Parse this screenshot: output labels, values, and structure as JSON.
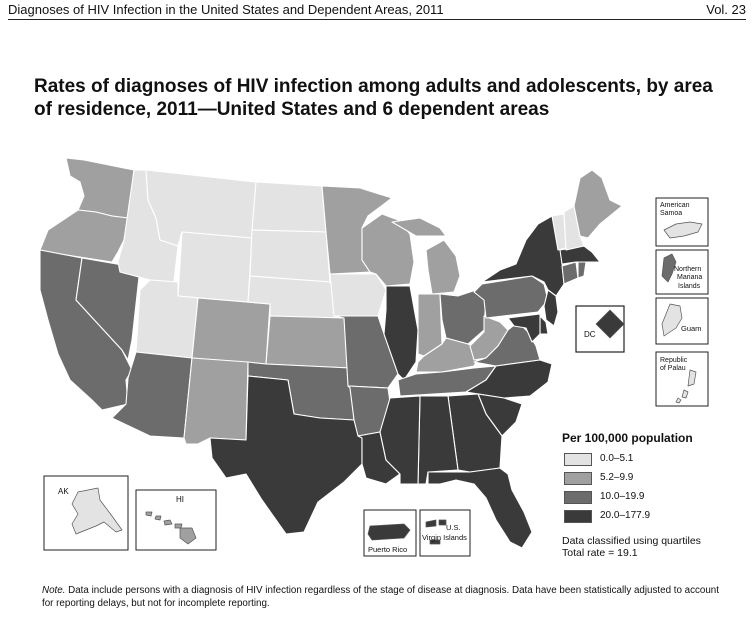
{
  "running_header": {
    "title": "Diagnoses of HIV Infection in the United States and Dependent Areas, 2011",
    "volume": "Vol. 23"
  },
  "figure": {
    "title": "Rates of diagnoses of HIV infection among adults and adolescents, by area of residence, 2011—United States and 6 dependent areas"
  },
  "legend": {
    "title": "Per 100,000 population",
    "classes": [
      {
        "label": "0.0–5.1",
        "color": "#e3e3e3"
      },
      {
        "label": "5.2–9.9",
        "color": "#a0a0a0"
      },
      {
        "label": "10.0–19.9",
        "color": "#6c6c6c"
      },
      {
        "label": "20.0–177.9",
        "color": "#3a3a3a"
      }
    ],
    "classification_note": "Data classified using quartiles",
    "total_rate": "Total rate = 19.1"
  },
  "inset_labels": {
    "ak": "AK",
    "hi": "HI",
    "dc": "DC",
    "puerto_rico": "Puerto Rico",
    "us_virgin_islands_1": "U.S.",
    "us_virgin_islands_2": "Virgin Islands",
    "american_samoa_1": "American",
    "american_samoa_2": "Samoa",
    "northern_mariana_1": "Northern",
    "northern_mariana_2": "Mariana",
    "northern_mariana_3": "Islands",
    "guam": "Guam",
    "palau_1": "Republic",
    "palau_2": "of Palau"
  },
  "area_rate_class": {
    "WA": 2,
    "OR": 2,
    "CA": 3,
    "NV": 3,
    "ID": 1,
    "MT": 1,
    "WY": 1,
    "UT": 1,
    "AZ": 3,
    "CO": 2,
    "NM": 2,
    "ND": 1,
    "SD": 1,
    "NE": 1,
    "KS": 2,
    "OK": 3,
    "TX": 4,
    "MN": 2,
    "IA": 1,
    "MO": 3,
    "AR": 3,
    "LA": 4,
    "WI": 2,
    "IL": 4,
    "MI": 2,
    "IN": 2,
    "OH": 3,
    "KY": 2,
    "TN": 3,
    "MS": 4,
    "AL": 4,
    "GA": 4,
    "FL": 4,
    "SC": 4,
    "NC": 4,
    "VA": 3,
    "WV": 2,
    "PA": 3,
    "NY": 4,
    "NJ": 4,
    "DE": 4,
    "MD": 4,
    "DC": 4,
    "CT": 3,
    "RI": 3,
    "MA": 4,
    "VT": 1,
    "NH": 1,
    "ME": 2,
    "AK": 1,
    "HI": 2,
    "PR": 4,
    "VI": 4,
    "AS": 1,
    "MP": 3,
    "GU": 1,
    "PW": 1
  },
  "footnote": {
    "label": "Note.",
    "text": "Data include persons with a diagnosis of HIV infection regardless of the stage of disease at diagnosis. Data have been statistically adjusted to account for reporting delays, but not for incomplete reporting."
  }
}
